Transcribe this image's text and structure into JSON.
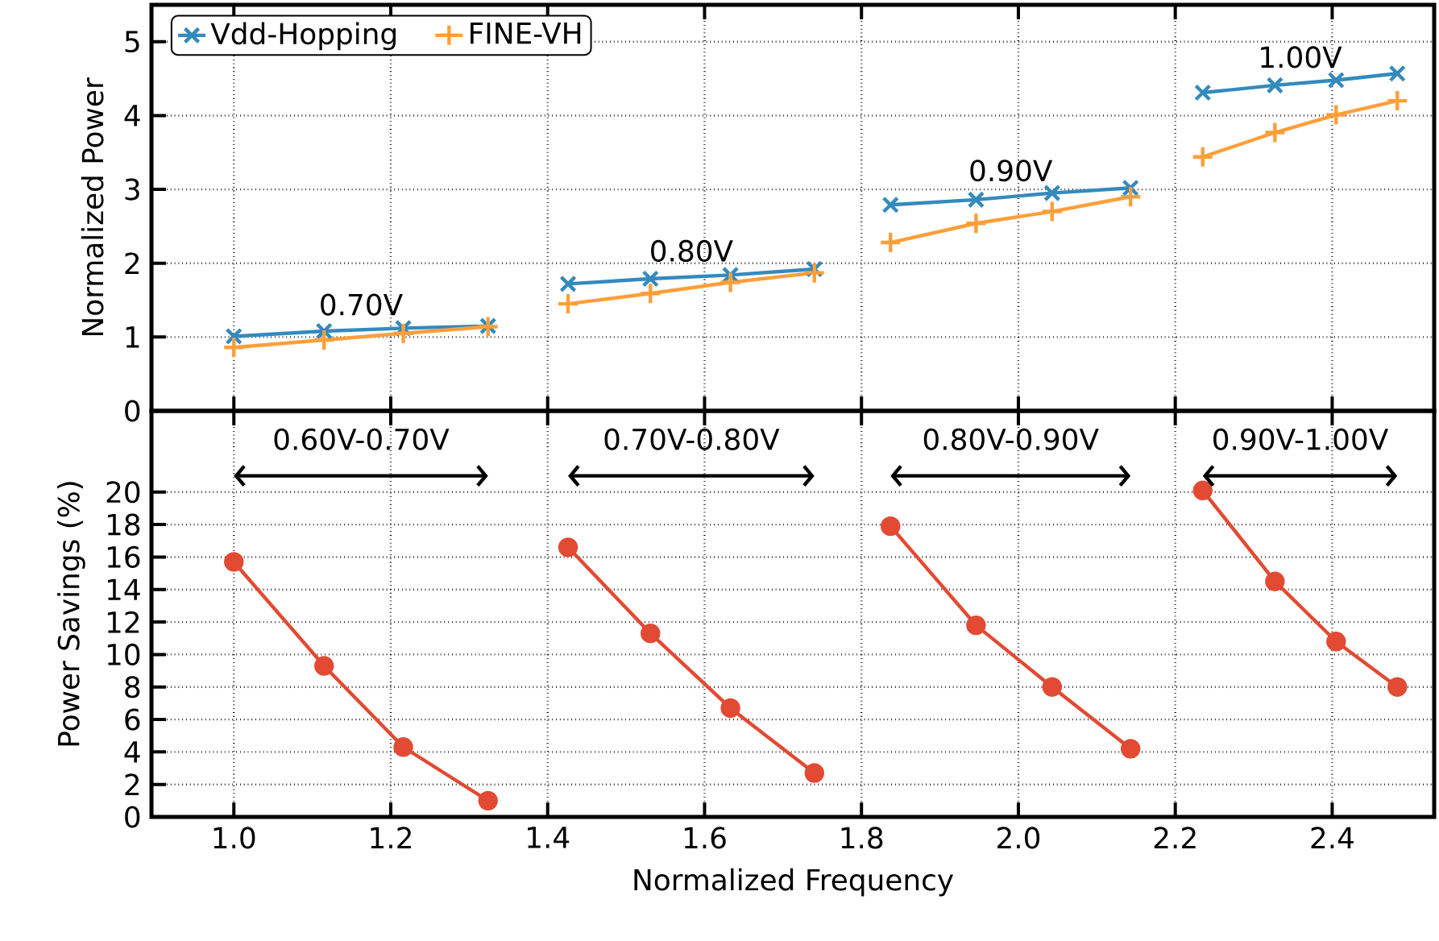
{
  "chart_data": [
    {
      "type": "line",
      "ylabel": "Normalized Power",
      "xlim": [
        0.895,
        2.53
      ],
      "ylim": [
        0,
        5.5
      ],
      "xticks": [
        {
          "value": 1.0,
          "label": null
        },
        {
          "value": 1.2,
          "label": null
        },
        {
          "value": 1.4,
          "label": null
        },
        {
          "value": 1.6,
          "label": null
        },
        {
          "value": 1.8,
          "label": null
        },
        {
          "value": 2.0,
          "label": null
        },
        {
          "value": 2.2,
          "label": null
        },
        {
          "value": 2.4,
          "label": null
        }
      ],
      "yticks": [
        0,
        1,
        2,
        3,
        4,
        5
      ],
      "tick_labels": "y",
      "grid": true,
      "legend": "top left",
      "series": [
        {
          "name": "Vdd-Hopping",
          "color": "#348abd",
          "marker": "x",
          "x": [
            1.0,
            1.115,
            1.216,
            1.324,
            null,
            1.426,
            1.531,
            1.633,
            1.74,
            null,
            1.837,
            1.946,
            2.043,
            2.143,
            null,
            2.235,
            2.327,
            2.405,
            2.483
          ],
          "values": [
            1.01,
            1.08,
            1.12,
            1.15,
            null,
            1.72,
            1.79,
            1.84,
            1.92,
            null,
            2.79,
            2.86,
            2.95,
            3.02,
            null,
            4.31,
            4.41,
            4.48,
            4.57
          ]
        },
        {
          "name": "FINE-VH",
          "color": "#ff9f3a",
          "marker": "cross",
          "x": [
            1.0,
            1.115,
            1.216,
            1.324,
            null,
            1.426,
            1.531,
            1.633,
            1.74,
            null,
            1.837,
            1.946,
            2.043,
            2.143,
            null,
            2.235,
            2.327,
            2.405,
            2.483
          ],
          "values": [
            0.86,
            0.96,
            1.05,
            1.14,
            null,
            1.45,
            1.59,
            1.74,
            1.87,
            null,
            2.28,
            2.54,
            2.7,
            2.9,
            null,
            3.44,
            3.77,
            4.01,
            4.2
          ]
        }
      ],
      "annotations": [
        "0.70V",
        "0.80V",
        "0.90V",
        "1.00V"
      ]
    },
    {
      "type": "line",
      "xlabel": "Normalized Frequency",
      "ylabel": "Power Savings (%)",
      "xlim": [
        0.895,
        2.53
      ],
      "ylim": [
        0,
        25
      ],
      "xticks": [
        {
          "value": 1.0,
          "label": "1.0"
        },
        {
          "value": 1.2,
          "label": "1.2"
        },
        {
          "value": 1.4,
          "label": "1.4"
        },
        {
          "value": 1.6,
          "label": "1.6"
        },
        {
          "value": 1.8,
          "label": "1.8"
        },
        {
          "value": 2.0,
          "label": "2.0"
        },
        {
          "value": 2.2,
          "label": "2.2"
        },
        {
          "value": 2.4,
          "label": "2.4"
        }
      ],
      "yticks": [
        0,
        2,
        4,
        6,
        8,
        10,
        12,
        14,
        16,
        18,
        20
      ],
      "grid": true,
      "series": [
        {
          "color": "#e24a33",
          "marker": "circle",
          "x": [
            1.0,
            1.115,
            1.216,
            1.324,
            null,
            1.426,
            1.531,
            1.633,
            1.74,
            null,
            1.837,
            1.946,
            2.043,
            2.143,
            null,
            2.235,
            2.327,
            2.405,
            2.483
          ],
          "values": [
            15.7,
            9.3,
            4.3,
            1.0,
            null,
            16.6,
            11.3,
            6.7,
            2.7,
            null,
            17.9,
            11.8,
            8.0,
            4.2,
            null,
            20.1,
            14.5,
            10.8,
            8.0
          ]
        }
      ],
      "annotations": [
        "0.60V-0.70V",
        "0.70V-0.80V",
        "0.80V-0.90V",
        "0.90V-1.00V"
      ]
    }
  ]
}
